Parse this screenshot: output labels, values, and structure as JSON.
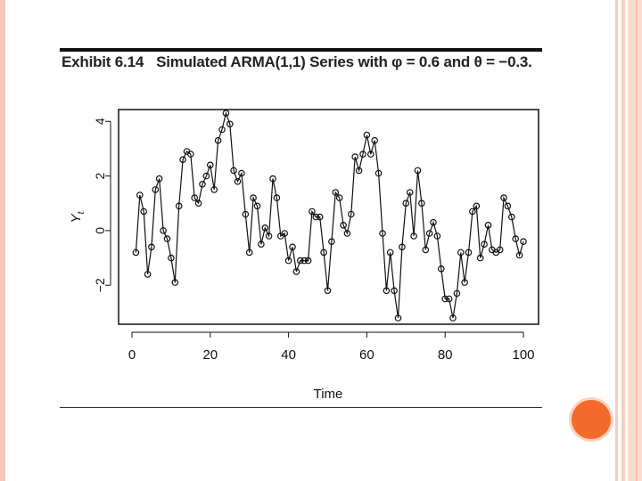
{
  "slide": {
    "exhibit_label": "Exhibit 6.14",
    "title": "Simulated ARMA(1,1) Series with φ = 0.6 and θ = −0.3."
  },
  "colors": {
    "accent_orange": "#f36b2c",
    "border_peach": "#f6cdbd",
    "ink": "#111111"
  },
  "chart_data": {
    "type": "line",
    "markers": "open-circle",
    "xlabel": "Time",
    "ylabel": "Y",
    "ylabel_subscript": "t",
    "xlim": [
      0,
      100
    ],
    "ylim": [
      -3.2,
      4.4
    ],
    "xticks": [
      0,
      20,
      40,
      60,
      80,
      100
    ],
    "yticks": [
      -2,
      0,
      2,
      4
    ],
    "grid": false,
    "series": [
      {
        "x": [
          1,
          2,
          3,
          4,
          5,
          6,
          7,
          8,
          9,
          10,
          11,
          12,
          13,
          14,
          15,
          16,
          17,
          18,
          19,
          20,
          21,
          22,
          23,
          24,
          25,
          26,
          27,
          28,
          29,
          30,
          31,
          32,
          33,
          34,
          35,
          36,
          37,
          38,
          39,
          40,
          41,
          42,
          43,
          44,
          45,
          46,
          47,
          48,
          49,
          50,
          51,
          52,
          53,
          54,
          55,
          56,
          57,
          58,
          59,
          60,
          61,
          62,
          63,
          64,
          65,
          66,
          67,
          68,
          69,
          70,
          71,
          72,
          73,
          74,
          75,
          76,
          77,
          78,
          79,
          80,
          81,
          82,
          83,
          84,
          85,
          86,
          87,
          88,
          89,
          90,
          91,
          92,
          93,
          94,
          95,
          96,
          97,
          98,
          99,
          100
        ],
        "values": [
          -0.8,
          1.3,
          0.7,
          -1.6,
          -0.6,
          1.5,
          1.9,
          0.0,
          -0.3,
          -1.0,
          -1.9,
          0.9,
          2.6,
          2.9,
          2.8,
          1.2,
          1.0,
          1.7,
          2.0,
          2.4,
          1.5,
          3.3,
          3.7,
          4.3,
          3.9,
          2.2,
          1.8,
          2.1,
          0.6,
          -0.8,
          1.2,
          0.9,
          -0.5,
          0.1,
          -0.2,
          1.9,
          1.2,
          -0.2,
          -0.1,
          -1.1,
          -0.6,
          -1.5,
          -1.1,
          -1.1,
          -1.1,
          0.7,
          0.5,
          0.5,
          -0.8,
          -2.2,
          -0.4,
          1.4,
          1.2,
          0.2,
          -0.1,
          0.6,
          2.7,
          2.2,
          2.8,
          3.5,
          2.8,
          3.3,
          2.1,
          -0.1,
          -2.2,
          -0.8,
          -2.2,
          -3.2,
          -0.6,
          1.0,
          1.4,
          -0.2,
          2.2,
          1.0,
          -0.7,
          -0.1,
          0.3,
          -0.2,
          -1.4,
          -2.5,
          -2.5,
          -3.2,
          -2.3,
          -0.8,
          -1.9,
          -0.8,
          0.7,
          0.9,
          -1.0,
          -0.5,
          0.2,
          -0.7,
          -0.8,
          -0.7,
          1.2,
          0.9,
          0.5,
          -0.3,
          -0.9,
          -0.4
        ]
      }
    ]
  }
}
